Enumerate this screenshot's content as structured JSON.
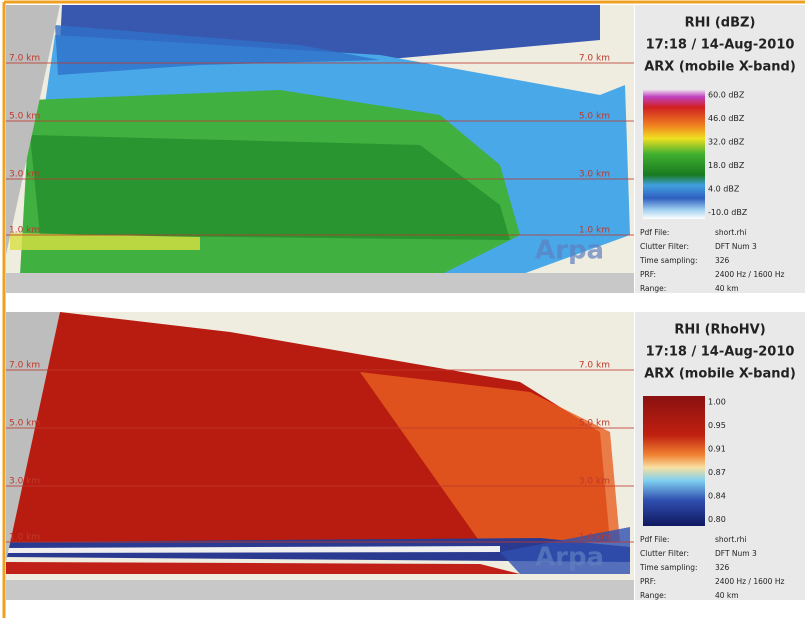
{
  "panels": [
    {
      "title": "RHI (dBZ)",
      "time": "17:18 / 14-Aug-2010",
      "radar": "ARX (mobile X-band)",
      "height_labels": [
        "7.0 km",
        "5.0 km",
        "3.0 km",
        "1.0 km"
      ],
      "legend": [
        "60.0 dBZ",
        "46.0 dBZ",
        "32.0 dBZ",
        "18.0 dBZ",
        "4.0 dBZ",
        "-10.0 dBZ"
      ],
      "info": [
        [
          "Pdf File:",
          "short.rhi"
        ],
        [
          "Clutter Filter:",
          "DFT Num 3"
        ],
        [
          "Time sampling:",
          "326"
        ],
        [
          "PRF:",
          "2400 Hz / 1600 Hz"
        ],
        [
          "Range:",
          "40 km"
        ]
      ],
      "watermark": "Arpa"
    },
    {
      "title": "RHI (RhoHV)",
      "time": "17:18 / 14-Aug-2010",
      "radar": "ARX (mobile X-band)",
      "height_labels": [
        "7.0 km",
        "5.0 km",
        "3.0 km",
        "1.0 km"
      ],
      "legend": [
        "1.00",
        "0.95",
        "0.91",
        "0.87",
        "0.84",
        "0.80"
      ],
      "info": [
        [
          "Pdf File:",
          "short.rhi"
        ],
        [
          "Clutter Filter:",
          "DFT Num 3"
        ],
        [
          "Time sampling:",
          "326"
        ],
        [
          "PRF:",
          "2400 Hz / 1600 Hz"
        ],
        [
          "Range:",
          "40 km"
        ]
      ],
      "watermark": "Arpa"
    }
  ]
}
